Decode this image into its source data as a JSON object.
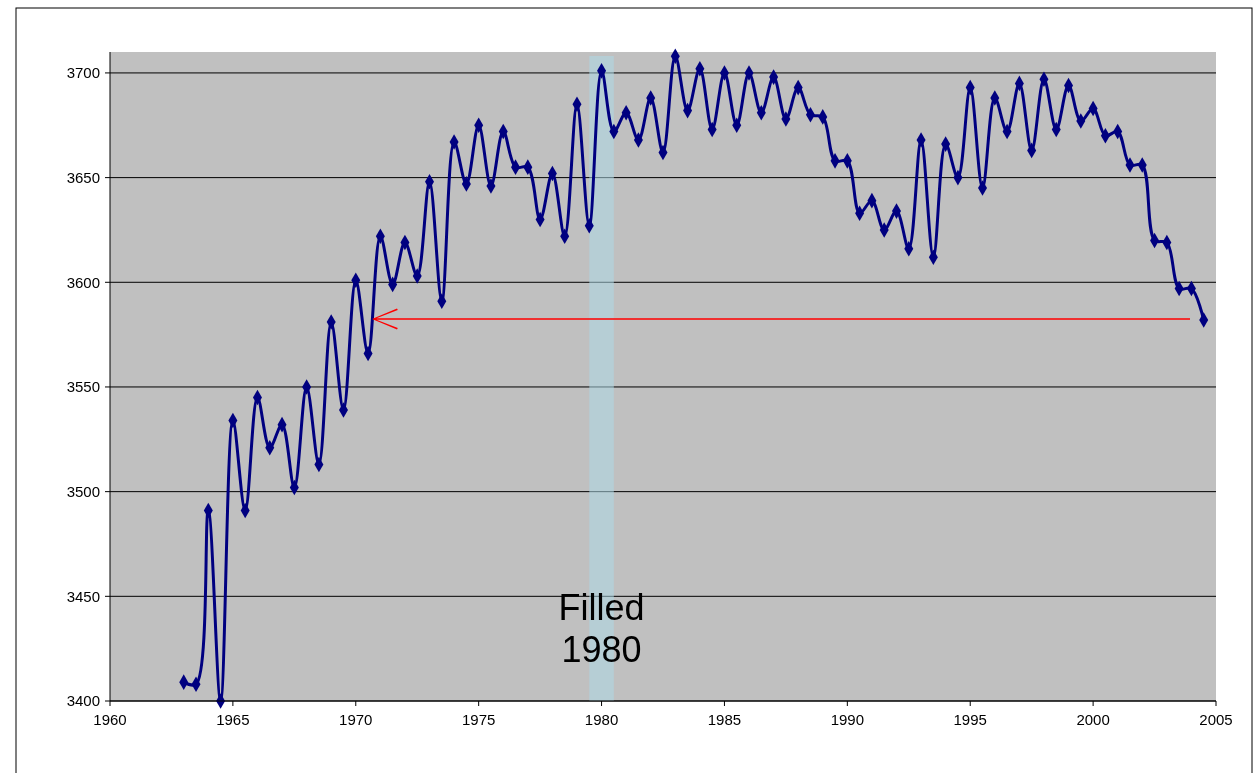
{
  "chart_data": {
    "type": "line",
    "x": [
      1963,
      1963.5,
      1964,
      1964.5,
      1965,
      1965.5,
      1966,
      1966.5,
      1967,
      1967.5,
      1968,
      1968.5,
      1969,
      1969.5,
      1970,
      1970.5,
      1971,
      1971.5,
      1972,
      1972.5,
      1973,
      1973.5,
      1974,
      1974.5,
      1975,
      1975.5,
      1976,
      1976.5,
      1977,
      1977.5,
      1978,
      1978.5,
      1979,
      1979.5,
      1980,
      1980.5,
      1981,
      1981.5,
      1982,
      1982.5,
      1983,
      1983.5,
      1984,
      1984.5,
      1985,
      1985.5,
      1986,
      1986.5,
      1987,
      1987.5,
      1988,
      1988.5,
      1989,
      1989.5,
      1990,
      1990.5,
      1991,
      1991.5,
      1992,
      1992.5,
      1993,
      1993.5,
      1994,
      1994.5,
      1995,
      1995.5,
      1996,
      1996.5,
      1997,
      1997.5,
      1998,
      1998.5,
      1999,
      1999.5,
      2000,
      2000.5,
      2001,
      2001.5,
      2002,
      2002.5,
      2003,
      2003.5,
      2004,
      2004.5
    ],
    "series": [
      {
        "color": "#000080",
        "values": [
          3409,
          3408,
          3491,
          3400,
          3534,
          3491,
          3545,
          3521,
          3532,
          3502,
          3550,
          3513,
          3581,
          3539,
          3601,
          3566,
          3622,
          3599,
          3619,
          3603,
          3648,
          3591,
          3667,
          3647,
          3675,
          3646,
          3672,
          3655,
          3655,
          3630,
          3652,
          3622,
          3685,
          3627,
          3701,
          3672,
          3681,
          3668,
          3688,
          3662,
          3708,
          3682,
          3702,
          3673,
          3700,
          3675,
          3700,
          3681,
          3698,
          3678,
          3693,
          3680,
          3679,
          3658,
          3658,
          3633,
          3639,
          3625,
          3634,
          3616,
          3668,
          3612,
          3666,
          3650,
          3693,
          3645,
          3688,
          3672,
          3695,
          3663,
          3697,
          3673,
          3694,
          3677,
          3683,
          3670,
          3672,
          3656,
          3656,
          3620,
          3619,
          3597,
          3597,
          3582
        ]
      }
    ],
    "xlim": [
      1960,
      2005
    ],
    "xticks": [
      1960,
      1965,
      1970,
      1975,
      1980,
      1985,
      1990,
      1995,
      2000,
      2005
    ],
    "ylim": [
      3400,
      3710
    ],
    "yticks": [
      3400,
      3450,
      3500,
      3550,
      3600,
      3650,
      3700
    ],
    "grid": "y",
    "marker": "diamond",
    "line_style": "solid",
    "bands": [
      {
        "axis": "x",
        "from": 1979.5,
        "to": 1980.5,
        "label": "Filled\n1980",
        "color": "#add8e6"
      }
    ]
  }
}
